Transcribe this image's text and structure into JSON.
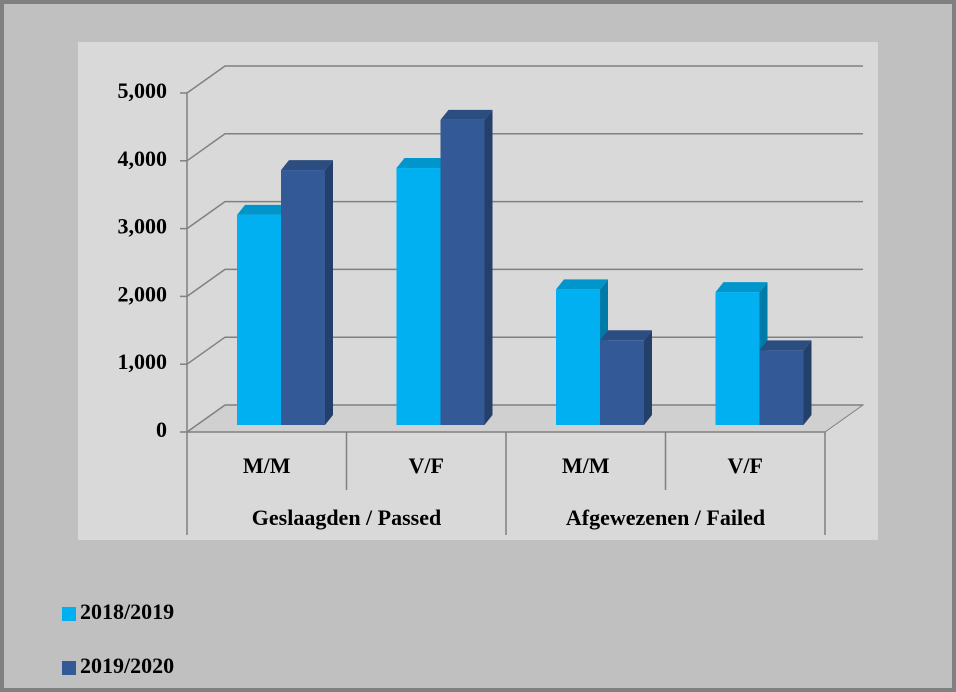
{
  "chart_data": {
    "type": "bar3d",
    "categories": [
      "M/M",
      "V/F",
      "M/M",
      "V/F"
    ],
    "groups": [
      "Geslaagden / Passed",
      "Afgewezenen / Failed"
    ],
    "series": [
      {
        "name": "2018/2019",
        "color": "#00b0f0",
        "values": [
          3100,
          3790,
          2000,
          1960
        ]
      },
      {
        "name": "2019/2020",
        "color": "#335a96",
        "values": [
          3760,
          4500,
          1250,
          1100
        ]
      }
    ],
    "ylim": [
      0,
      5000
    ],
    "yticks": [
      0,
      {
        "value": 1000,
        "label": "1,000"
      },
      {
        "value": 2000,
        "label": "2,000"
      },
      {
        "value": 3000,
        "label": "3,000"
      },
      {
        "value": 4000,
        "label": "4,000"
      },
      {
        "value": 5000,
        "label": "5,000"
      }
    ],
    "grid": true
  }
}
